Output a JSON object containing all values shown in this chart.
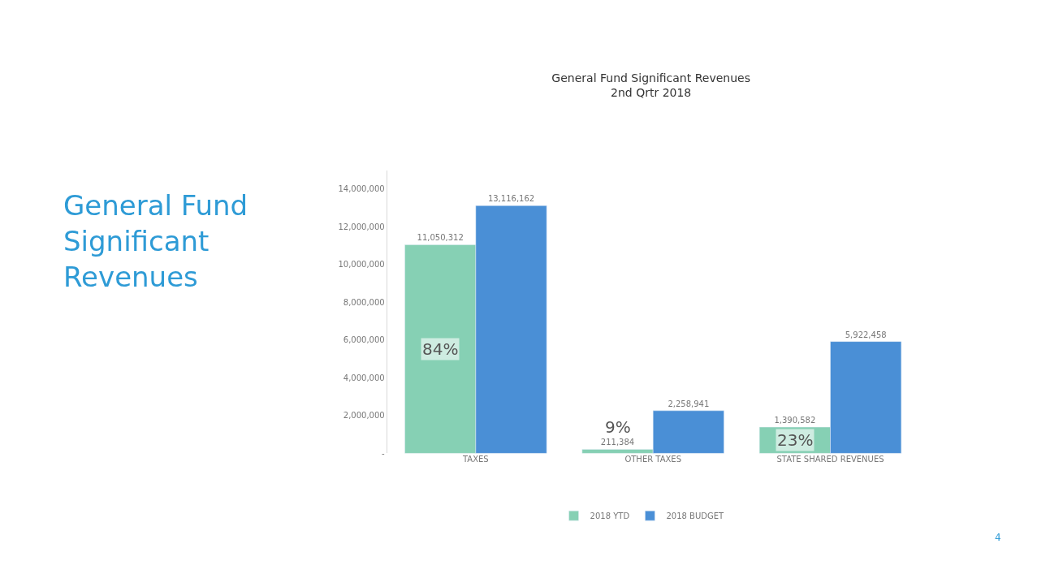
{
  "chart_data": {
    "type": "bar",
    "title": "General Fund Significant Revenues\n2nd Qrtr 2018",
    "categories": [
      "TAXES",
      "OTHER TAXES",
      "STATE SHARED REVENUES"
    ],
    "series": [
      {
        "name": "2018 YTD",
        "color": "#86d0b4",
        "values": [
          11050312,
          211384,
          1390582
        ],
        "value_labels": [
          "11,050,312",
          "211,384",
          "1,390,582"
        ]
      },
      {
        "name": "2018 BUDGET",
        "color": "#4a8fd6",
        "values": [
          13116162,
          2258941,
          5922458
        ],
        "value_labels": [
          "13,116,162",
          "2,258,941",
          "5,922,458"
        ]
      }
    ],
    "ylim": [
      0,
      15000000
    ],
    "yticks": [
      {
        "value": 0,
        "label": "-"
      },
      {
        "value": 2000000,
        "label": "2,000,000"
      },
      {
        "value": 4000000,
        "label": "4,000,000"
      },
      {
        "value": 6000000,
        "label": "6,000,000"
      },
      {
        "value": 8000000,
        "label": "8,000,000"
      },
      {
        "value": 10000000,
        "label": "10,000,000"
      },
      {
        "value": 12000000,
        "label": "12,000,000"
      },
      {
        "value": 14000000,
        "label": "14,000,000"
      }
    ],
    "legend": "bottom",
    "annotations": [
      {
        "text": "84%",
        "x": "TAXES",
        "y": 5500000
      },
      {
        "text": "9%",
        "x": "OTHER TAXES",
        "y": 1400000
      },
      {
        "text": "23%",
        "x": "STATE SHARED REVENUES",
        "y": 700000
      },
      "General Fund Significant Revenues",
      "4"
    ]
  }
}
